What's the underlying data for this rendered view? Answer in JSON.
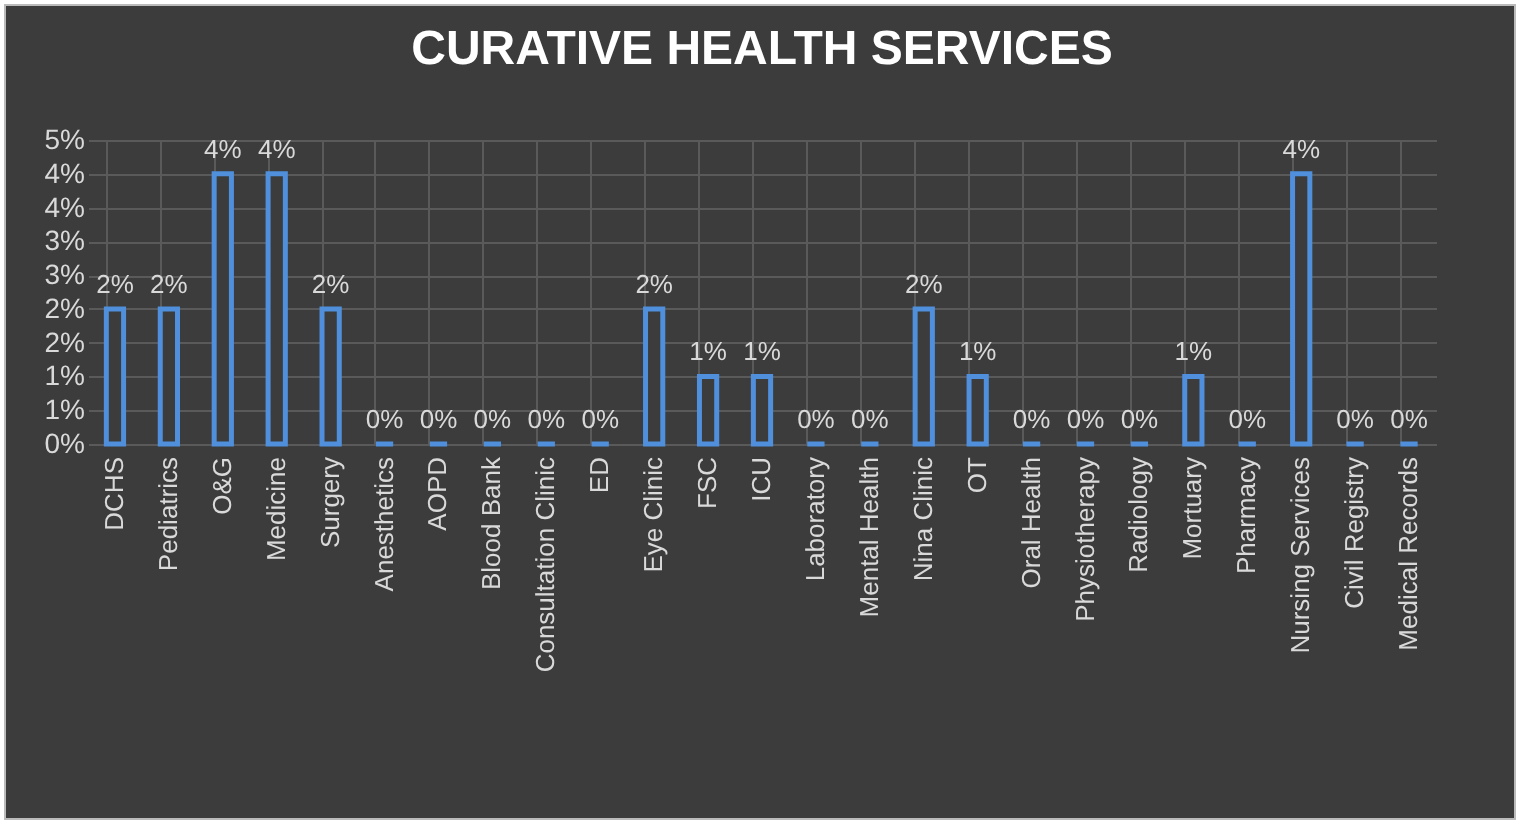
{
  "chart_data": {
    "type": "bar",
    "title": "CURATIVE HEALTH SERVICES",
    "categories": [
      "DCHS",
      "Pediatrics",
      "O&G",
      "Medicine",
      "Surgery",
      "Anesthetics",
      "AOPD",
      "Blood Bank",
      "Consultation Clinic",
      "ED",
      "Eye Clinic",
      "FSC",
      "ICU",
      "Laboratory",
      "Mental Health",
      "Nina Clinic",
      "OT",
      "Oral Health",
      "Physiotherapy",
      "Radiology",
      "Mortuary",
      "Pharmacy",
      "Nursing Services",
      "Civil Registry",
      "Medical Records"
    ],
    "values": [
      2,
      2,
      4,
      4,
      2,
      0,
      0,
      0,
      0,
      0,
      2,
      1,
      1,
      0,
      0,
      2,
      1,
      0,
      0,
      0,
      1,
      0,
      4,
      0,
      0
    ],
    "value_labels": [
      "2%",
      "2%",
      "4%",
      "4%",
      "2%",
      "0%",
      "0%",
      "0%",
      "0%",
      "0%",
      "2%",
      "1%",
      "1%",
      "0%",
      "0%",
      "2%",
      "1%",
      "0%",
      "0%",
      "0%",
      "1%",
      "0%",
      "4%",
      "0%",
      "0%"
    ],
    "color": "#4f8fdc",
    "ylim": [
      0,
      4.5
    ],
    "yticks": [
      {
        "value": 0,
        "label": "0%"
      },
      {
        "value": 0.5,
        "label": "1%"
      },
      {
        "value": 1,
        "label": "1%"
      },
      {
        "value": 1.5,
        "label": "2%"
      },
      {
        "value": 2,
        "label": "2%"
      },
      {
        "value": 2.5,
        "label": "3%"
      },
      {
        "value": 3,
        "label": "3%"
      },
      {
        "value": 3.5,
        "label": "4%"
      },
      {
        "value": 4,
        "label": "4%"
      },
      {
        "value": 4.5,
        "label": "5%"
      }
    ],
    "grid": true
  }
}
